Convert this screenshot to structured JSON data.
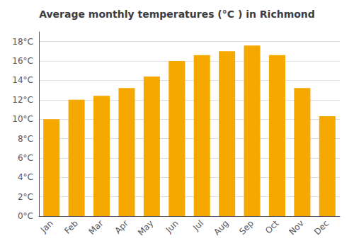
{
  "chart_data": {
    "type": "bar",
    "title": "Average monthly temperatures (°C ) in Richmond",
    "categories": [
      "Jan",
      "Feb",
      "Mar",
      "Apr",
      "May",
      "Jun",
      "Jul",
      "Aug",
      "Sep",
      "Oct",
      "Nov",
      "Dec"
    ],
    "values": [
      10.0,
      12.0,
      12.4,
      13.2,
      14.4,
      16.0,
      16.6,
      17.0,
      17.6,
      16.6,
      13.2,
      10.3
    ],
    "color": "#F5A800",
    "ylim": [
      0,
      19
    ],
    "yticks": [
      {
        "value": 0,
        "label": "0°C"
      },
      {
        "value": 2,
        "label": "2°C"
      },
      {
        "value": 4,
        "label": "4°C"
      },
      {
        "value": 6,
        "label": "6°C"
      },
      {
        "value": 8,
        "label": "8°C"
      },
      {
        "value": 10,
        "label": "10°C"
      },
      {
        "value": 12,
        "label": "12°C"
      },
      {
        "value": 14,
        "label": "14°C"
      },
      {
        "value": 16,
        "label": "16°C"
      },
      {
        "value": 18,
        "label": "18°C"
      }
    ],
    "grid": true
  }
}
